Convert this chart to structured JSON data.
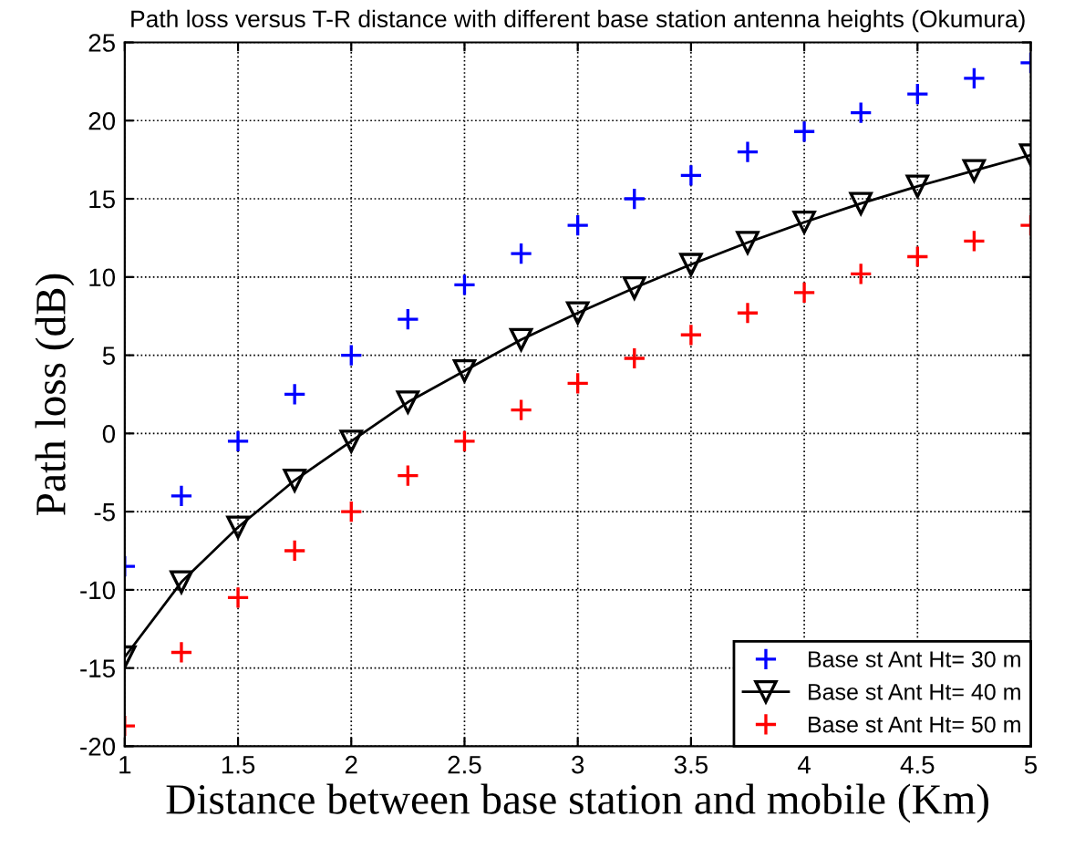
{
  "chart_data": {
    "type": "line",
    "title": "Path loss versus T-R distance with different base station antenna heights (Okumura)",
    "xlabel": "Distance between base station and mobile (Km)",
    "ylabel": "Path loss (dB)",
    "x": [
      1,
      1.25,
      1.5,
      1.75,
      2,
      2.25,
      2.5,
      2.75,
      3,
      3.25,
      3.5,
      3.75,
      4,
      4.25,
      4.5,
      4.75,
      5
    ],
    "series": [
      {
        "name": "Base st Ant Ht= 30 m",
        "type": "scatter",
        "color": "#0000ff",
        "marker": "cross",
        "values": [
          -8.5,
          -4,
          -0.5,
          2.5,
          5,
          7.3,
          9.5,
          11.5,
          13.3,
          15,
          16.5,
          18,
          19.3,
          20.5,
          21.7,
          22.7,
          23.7
        ]
      },
      {
        "name": "Base st Ant Ht= 40 m",
        "color": "#000000",
        "marker": "triangle",
        "line_style": "solid",
        "values": [
          -14.3,
          -9.5,
          -6,
          -3,
          -0.5,
          2,
          4,
          6,
          7.7,
          9.3,
          10.8,
          12.2,
          13.5,
          14.7,
          15.8,
          16.8,
          17.8
        ]
      },
      {
        "name": "Base st Ant Ht= 50 m",
        "type": "scatter",
        "color": "#ff0000",
        "marker": "cross",
        "values": [
          -18.7,
          -14,
          -10.5,
          -7.5,
          -5,
          -2.7,
          -0.5,
          1.5,
          3.2,
          4.8,
          6.3,
          7.7,
          9,
          10.2,
          11.3,
          12.3,
          13.3
        ]
      }
    ],
    "xlim": [
      1,
      5
    ],
    "xticks": [
      1,
      1.5,
      2,
      2.5,
      3,
      3.5,
      4,
      4.5,
      5
    ],
    "ylim": [
      -20,
      25
    ],
    "yticks": [
      -20,
      -15,
      -10,
      -5,
      0,
      5,
      10,
      15,
      20,
      25
    ],
    "grid": true,
    "legend": "bottom right"
  }
}
